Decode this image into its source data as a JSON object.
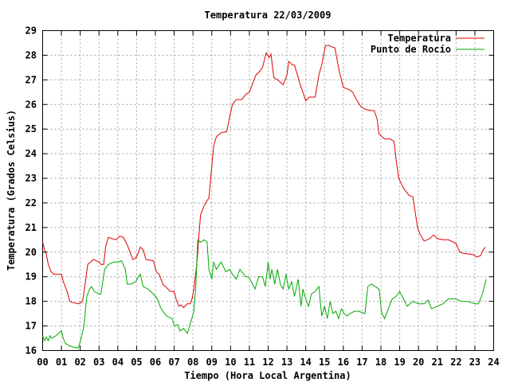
{
  "chart_data": {
    "type": "line",
    "title": "Temperatura 22/03/2009",
    "xlabel": "Tiempo (Hora Local Argentina)",
    "ylabel": "Temperatura (Grados Celsius)",
    "xlim": [
      0,
      24
    ],
    "ylim": [
      16,
      29
    ],
    "grid": true,
    "legend_position": "top-right",
    "x_ticks": [
      {
        "value": 0,
        "label": "00"
      },
      {
        "value": 1,
        "label": "01"
      },
      {
        "value": 2,
        "label": "02"
      },
      {
        "value": 3,
        "label": "03"
      },
      {
        "value": 4,
        "label": "04"
      },
      {
        "value": 5,
        "label": "05"
      },
      {
        "value": 6,
        "label": "06"
      },
      {
        "value": 7,
        "label": "07"
      },
      {
        "value": 8,
        "label": "08"
      },
      {
        "value": 9,
        "label": "09"
      },
      {
        "value": 10,
        "label": "10"
      },
      {
        "value": 11,
        "label": "11"
      },
      {
        "value": 12,
        "label": "12"
      },
      {
        "value": 13,
        "label": "13"
      },
      {
        "value": 14,
        "label": "14"
      },
      {
        "value": 15,
        "label": "15"
      },
      {
        "value": 16,
        "label": "16"
      },
      {
        "value": 17,
        "label": "17"
      },
      {
        "value": 18,
        "label": "18"
      },
      {
        "value": 19,
        "label": "19"
      },
      {
        "value": 20,
        "label": "20"
      },
      {
        "value": 21,
        "label": "21"
      },
      {
        "value": 22,
        "label": "22"
      },
      {
        "value": 23,
        "label": "23"
      },
      {
        "value": 24,
        "label": "24"
      }
    ],
    "y_ticks": [
      16,
      17,
      18,
      19,
      20,
      21,
      22,
      23,
      24,
      25,
      26,
      27,
      28,
      29
    ],
    "series": [
      {
        "name": "Temperatura",
        "color": "#e00000",
        "x": [
          0,
          0.1,
          0.2,
          0.3,
          0.45,
          0.6,
          0.8,
          1.0,
          1.1,
          1.3,
          1.45,
          1.6,
          1.9,
          2.05,
          2.15,
          2.4,
          2.7,
          3.0,
          3.1,
          3.25,
          3.35,
          3.5,
          3.9,
          4.1,
          4.3,
          4.5,
          4.8,
          4.95,
          5.05,
          5.2,
          5.35,
          5.5,
          5.9,
          6.05,
          6.2,
          6.4,
          6.8,
          7.0,
          7.1,
          7.25,
          7.35,
          7.5,
          7.7,
          7.85,
          7.95,
          8.05,
          8.2,
          8.4,
          8.6,
          8.75,
          8.85,
          9.0,
          9.1,
          9.25,
          9.5,
          9.8,
          9.95,
          10.1,
          10.3,
          10.6,
          10.8,
          11.0,
          11.2,
          11.35,
          11.5,
          11.7,
          11.9,
          12.05,
          12.15,
          12.3,
          12.4,
          12.5,
          12.8,
          13.0,
          13.1,
          13.3,
          13.4,
          13.6,
          13.75,
          13.85,
          14.0,
          14.2,
          14.5,
          14.7,
          14.85,
          15.05,
          15.25,
          15.35,
          15.55,
          15.8,
          16.0,
          16.15,
          16.3,
          16.5,
          16.7,
          16.95,
          17.2,
          17.5,
          17.65,
          17.8,
          17.9,
          18.05,
          18.2,
          18.5,
          18.7,
          18.8,
          18.95,
          19.2,
          19.5,
          19.7,
          19.95,
          20.1,
          20.3,
          20.6,
          20.8,
          21.0,
          21.3,
          21.6,
          22.0,
          22.2,
          22.4,
          22.9,
          23.1,
          23.3,
          23.45,
          23.55
        ],
        "y": [
          20.4,
          20.1,
          19.9,
          19.5,
          19.2,
          19.1,
          19.1,
          19.1,
          18.8,
          18.4,
          18.0,
          17.95,
          17.9,
          17.95,
          18.1,
          19.5,
          19.7,
          19.6,
          19.5,
          19.5,
          20.2,
          20.6,
          20.5,
          20.65,
          20.6,
          20.3,
          19.7,
          19.75,
          19.9,
          20.2,
          20.1,
          19.7,
          19.65,
          19.2,
          19.1,
          18.7,
          18.4,
          18.4,
          18.1,
          17.8,
          17.85,
          17.75,
          17.9,
          17.9,
          18.1,
          18.5,
          19.5,
          21.5,
          21.9,
          22.1,
          22.2,
          23.5,
          24.3,
          24.7,
          24.85,
          24.9,
          25.5,
          26.0,
          26.2,
          26.2,
          26.4,
          26.5,
          26.9,
          27.2,
          27.3,
          27.5,
          28.1,
          27.9,
          28.05,
          27.1,
          27.05,
          27.0,
          26.8,
          27.2,
          27.75,
          27.6,
          27.6,
          27.1,
          26.7,
          26.5,
          26.15,
          26.3,
          26.3,
          27.2,
          27.6,
          28.4,
          28.4,
          28.35,
          28.3,
          27.3,
          26.7,
          26.65,
          26.6,
          26.5,
          26.2,
          25.9,
          25.8,
          25.75,
          25.75,
          25.4,
          24.8,
          24.7,
          24.6,
          24.6,
          24.5,
          23.8,
          23.0,
          22.6,
          22.3,
          22.25,
          21.0,
          20.7,
          20.45,
          20.55,
          20.7,
          20.55,
          20.5,
          20.5,
          20.35,
          20.0,
          19.95,
          19.9,
          19.8,
          19.85,
          20.1,
          20.2
        ]
      },
      {
        "name": "Punto de Rocío",
        "color": "#00aa00",
        "x": [
          0,
          0.1,
          0.2,
          0.3,
          0.4,
          0.5,
          0.7,
          1.0,
          1.1,
          1.2,
          1.4,
          1.6,
          1.9,
          2.05,
          2.2,
          2.35,
          2.5,
          2.6,
          2.75,
          3.0,
          3.1,
          3.3,
          3.5,
          3.8,
          4.0,
          4.2,
          4.4,
          4.5,
          4.7,
          4.95,
          5.1,
          5.2,
          5.35,
          5.6,
          5.9,
          6.1,
          6.3,
          6.6,
          6.9,
          7.0,
          7.2,
          7.3,
          7.5,
          7.7,
          7.9,
          8.05,
          8.15,
          8.25,
          8.4,
          8.6,
          8.75,
          8.85,
          9.0,
          9.1,
          9.25,
          9.5,
          9.75,
          9.95,
          10.1,
          10.3,
          10.5,
          10.8,
          10.95,
          11.1,
          11.3,
          11.5,
          11.7,
          11.85,
          12.0,
          12.1,
          12.2,
          12.35,
          12.5,
          12.65,
          12.8,
          12.95,
          13.1,
          13.25,
          13.4,
          13.6,
          13.75,
          13.85,
          14.0,
          14.15,
          14.3,
          14.5,
          14.7,
          14.85,
          15.0,
          15.15,
          15.3,
          15.45,
          15.6,
          15.75,
          15.9,
          16.05,
          16.2,
          16.35,
          16.6,
          16.8,
          17.0,
          17.15,
          17.3,
          17.5,
          17.7,
          17.9,
          18.05,
          18.2,
          18.4,
          18.6,
          18.8,
          19.0,
          19.2,
          19.4,
          19.7,
          20.0,
          20.3,
          20.5,
          20.7,
          21.0,
          21.3,
          21.6,
          22.0,
          22.3,
          22.6,
          23.0,
          23.2,
          23.4,
          23.6
        ],
        "y": [
          16.6,
          16.4,
          16.55,
          16.4,
          16.6,
          16.5,
          16.6,
          16.8,
          16.5,
          16.3,
          16.2,
          16.15,
          16.1,
          16.5,
          17.0,
          18.2,
          18.5,
          18.6,
          18.4,
          18.3,
          18.3,
          19.3,
          19.5,
          19.6,
          19.6,
          19.65,
          19.3,
          18.7,
          18.7,
          18.8,
          19.0,
          19.1,
          18.6,
          18.5,
          18.3,
          18.1,
          17.7,
          17.4,
          17.3,
          17.0,
          17.05,
          16.8,
          16.9,
          16.7,
          17.2,
          17.6,
          18.6,
          20.5,
          20.4,
          20.5,
          20.4,
          19.3,
          18.9,
          19.6,
          19.3,
          19.6,
          19.2,
          19.3,
          19.1,
          18.9,
          19.3,
          19.0,
          19.0,
          18.8,
          18.5,
          19.0,
          19.0,
          18.6,
          19.6,
          18.9,
          19.3,
          18.7,
          19.3,
          18.7,
          18.5,
          19.1,
          18.5,
          18.8,
          18.2,
          18.9,
          17.8,
          18.5,
          18.1,
          17.8,
          18.3,
          18.4,
          18.6,
          17.4,
          17.8,
          17.3,
          18.0,
          17.5,
          17.6,
          17.3,
          17.7,
          17.5,
          17.4,
          17.5,
          17.6,
          17.6,
          17.55,
          17.5,
          18.6,
          18.7,
          18.6,
          18.5,
          17.5,
          17.3,
          17.7,
          18.1,
          18.2,
          18.4,
          18.1,
          17.8,
          18.0,
          17.9,
          17.9,
          18.05,
          17.7,
          17.8,
          17.9,
          18.1,
          18.1,
          18.0,
          18.0,
          17.9,
          17.9,
          18.3,
          18.9
        ]
      }
    ]
  }
}
